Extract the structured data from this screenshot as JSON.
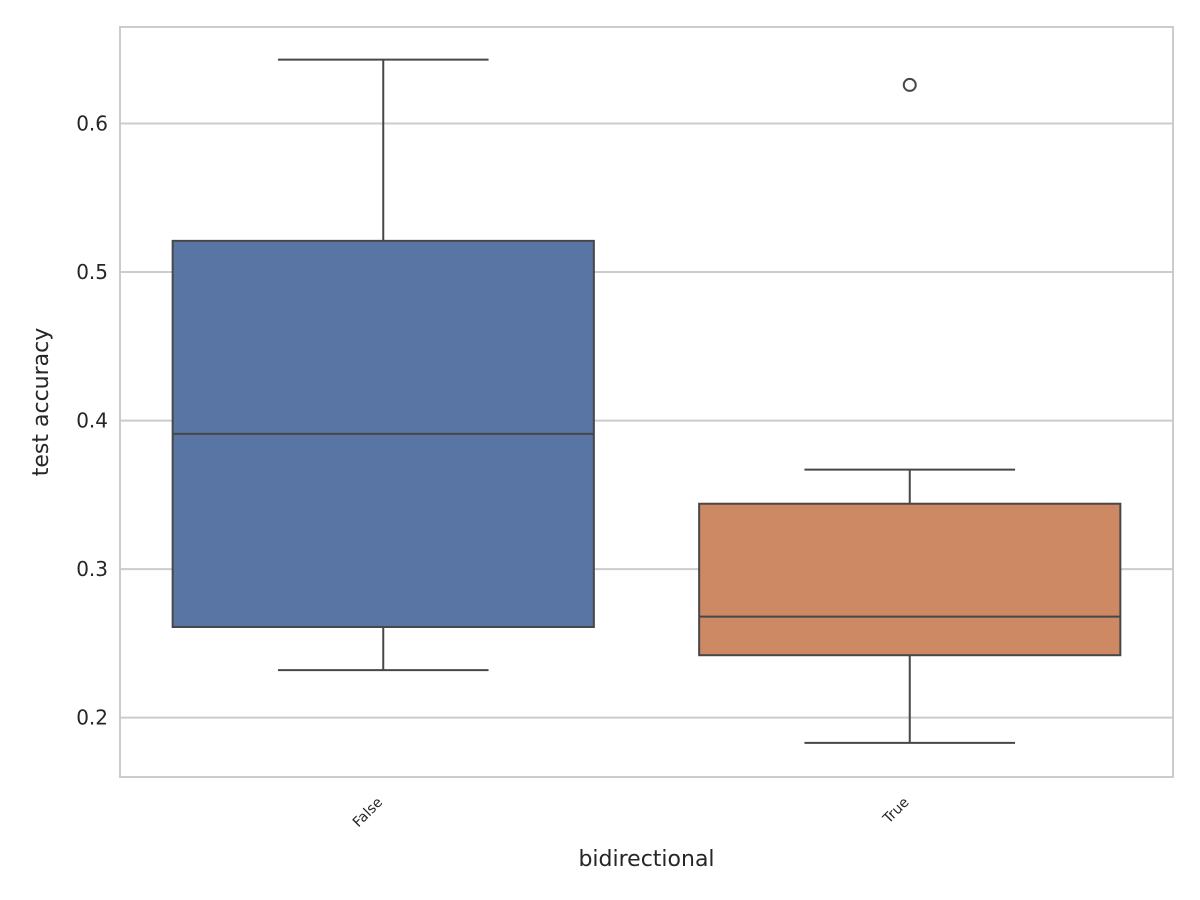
{
  "chart_data": {
    "type": "box",
    "xlabel": "bidirectional",
    "ylabel": "test accuracy",
    "ylim": [
      0.16,
      0.665
    ],
    "yticks": [
      0.2,
      0.3,
      0.4,
      0.5,
      0.6
    ],
    "ytick_labels": [
      "0.2",
      "0.3",
      "0.4",
      "0.5",
      "0.6"
    ],
    "grid": "horizontal",
    "categories": [
      "False",
      "True"
    ],
    "boxes": [
      {
        "category": "False",
        "color": "#5875a4",
        "whisker_low": 0.232,
        "q1": 0.261,
        "median": 0.391,
        "q3": 0.521,
        "whisker_high": 0.643,
        "outliers": []
      },
      {
        "category": "True",
        "color": "#cc8963",
        "whisker_low": 0.183,
        "q1": 0.242,
        "median": 0.268,
        "q3": 0.344,
        "whisker_high": 0.367,
        "outliers": [
          0.626
        ]
      }
    ]
  }
}
